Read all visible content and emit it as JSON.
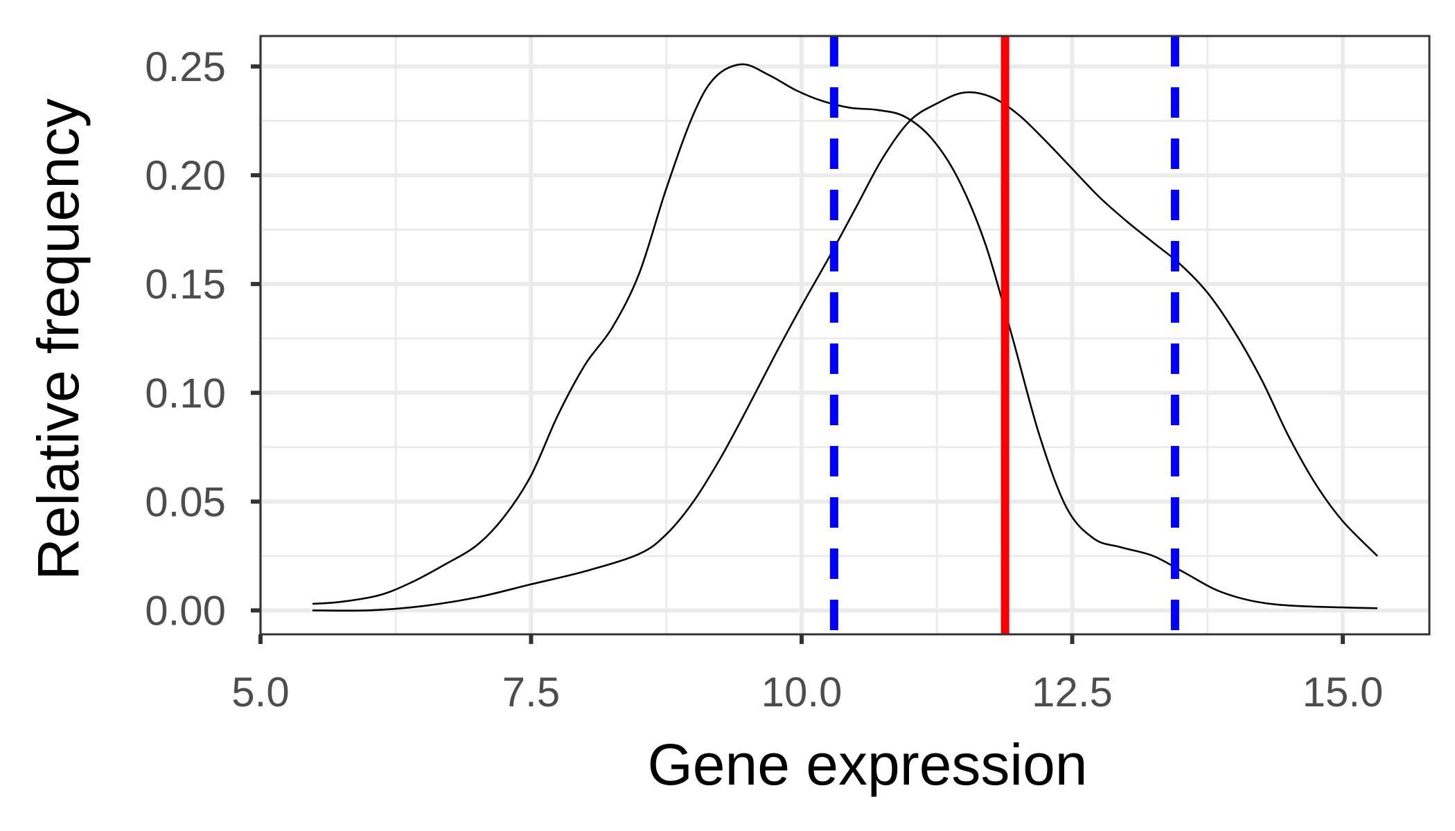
{
  "chart_data": {
    "type": "line",
    "title": "",
    "xlabel": "Gene expression",
    "ylabel": "Relative frequency",
    "xlim": [
      5.0,
      15.8
    ],
    "ylim": [
      -0.011,
      0.264
    ],
    "x_ticks": [
      5.0,
      7.5,
      10.0,
      12.5,
      15.0
    ],
    "x_tick_labels": [
      "5.0",
      "7.5",
      "10.0",
      "12.5",
      "15.0"
    ],
    "y_ticks": [
      0.0,
      0.05,
      0.1,
      0.15,
      0.2,
      0.25
    ],
    "y_tick_labels": [
      "0.00",
      "0.05",
      "0.10",
      "0.15",
      "0.20",
      "0.25"
    ],
    "grid": true,
    "series": [
      {
        "color": "#000000",
        "points": [
          [
            5.48,
            0.003
          ],
          [
            5.75,
            0.004
          ],
          [
            6.1,
            0.007
          ],
          [
            6.4,
            0.013
          ],
          [
            6.7,
            0.021
          ],
          [
            7.0,
            0.03
          ],
          [
            7.25,
            0.043
          ],
          [
            7.5,
            0.062
          ],
          [
            7.75,
            0.09
          ],
          [
            8.0,
            0.113
          ],
          [
            8.25,
            0.13
          ],
          [
            8.5,
            0.155
          ],
          [
            8.75,
            0.194
          ],
          [
            9.0,
            0.228
          ],
          [
            9.2,
            0.245
          ],
          [
            9.45,
            0.251
          ],
          [
            9.7,
            0.246
          ],
          [
            9.95,
            0.239
          ],
          [
            10.2,
            0.234
          ],
          [
            10.45,
            0.231
          ],
          [
            10.7,
            0.23
          ],
          [
            10.95,
            0.227
          ],
          [
            11.2,
            0.217
          ],
          [
            11.45,
            0.198
          ],
          [
            11.7,
            0.168
          ],
          [
            11.95,
            0.125
          ],
          [
            12.2,
            0.08
          ],
          [
            12.45,
            0.047
          ],
          [
            12.7,
            0.033
          ],
          [
            12.95,
            0.029
          ],
          [
            13.25,
            0.025
          ],
          [
            13.55,
            0.017
          ],
          [
            13.85,
            0.009
          ],
          [
            14.2,
            0.004
          ],
          [
            14.6,
            0.002
          ],
          [
            15.32,
            0.001
          ]
        ]
      },
      {
        "color": "#000000",
        "points": [
          [
            5.48,
            0.0
          ],
          [
            6.0,
            0.0
          ],
          [
            6.5,
            0.002
          ],
          [
            7.0,
            0.006
          ],
          [
            7.5,
            0.012
          ],
          [
            8.0,
            0.018
          ],
          [
            8.5,
            0.026
          ],
          [
            8.75,
            0.035
          ],
          [
            9.0,
            0.05
          ],
          [
            9.25,
            0.07
          ],
          [
            9.5,
            0.093
          ],
          [
            9.75,
            0.117
          ],
          [
            10.0,
            0.14
          ],
          [
            10.25,
            0.162
          ],
          [
            10.5,
            0.185
          ],
          [
            10.75,
            0.208
          ],
          [
            11.0,
            0.225
          ],
          [
            11.25,
            0.233
          ],
          [
            11.5,
            0.238
          ],
          [
            11.75,
            0.236
          ],
          [
            12.0,
            0.228
          ],
          [
            12.25,
            0.216
          ],
          [
            12.5,
            0.203
          ],
          [
            12.75,
            0.19
          ],
          [
            13.0,
            0.179
          ],
          [
            13.25,
            0.169
          ],
          [
            13.5,
            0.159
          ],
          [
            13.75,
            0.146
          ],
          [
            14.0,
            0.128
          ],
          [
            14.25,
            0.106
          ],
          [
            14.5,
            0.08
          ],
          [
            14.75,
            0.058
          ],
          [
            15.0,
            0.041
          ],
          [
            15.32,
            0.025
          ]
        ]
      }
    ],
    "vlines": [
      {
        "x": 10.3,
        "color": "#0000ff",
        "style": "dashed"
      },
      {
        "x": 11.88,
        "color": "#ff0000",
        "style": "solid"
      },
      {
        "x": 13.45,
        "color": "#0000ff",
        "style": "dashed"
      }
    ]
  }
}
